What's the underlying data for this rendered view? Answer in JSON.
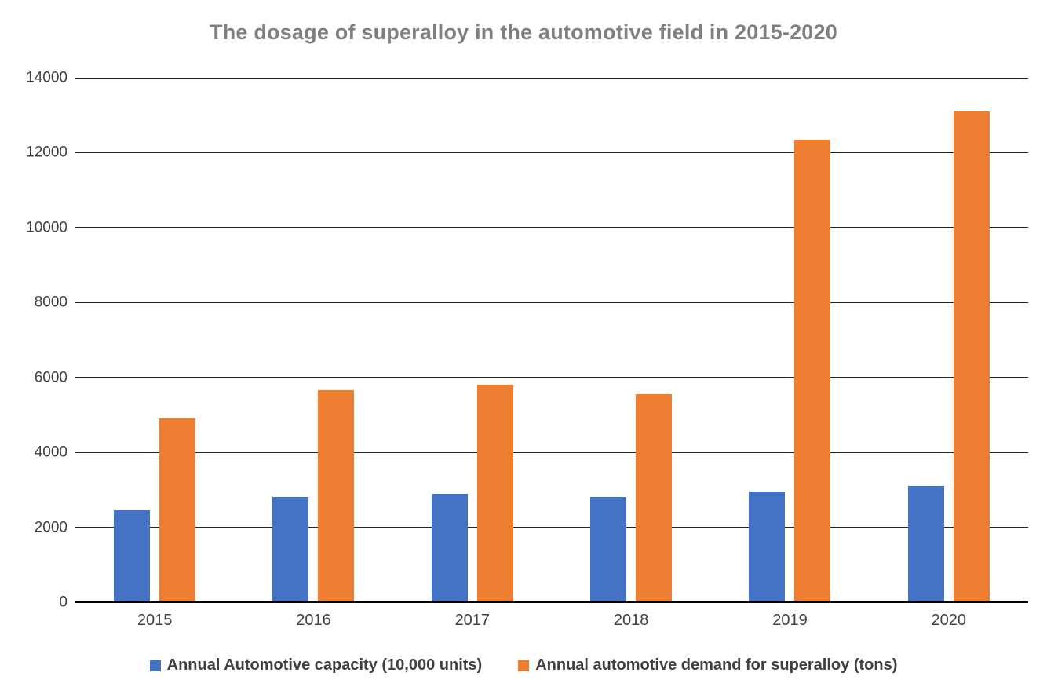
{
  "chart_data": {
    "type": "bar",
    "title": "The dosage of superalloy in the automotive field in 2015-2020",
    "categories": [
      "2015",
      "2016",
      "2017",
      "2018",
      "2019",
      "2020"
    ],
    "series": [
      {
        "name": "Annual Automotive capacity (10,000 units)",
        "color": "#4472C4",
        "values": [
          2450,
          2800,
          2900,
          2800,
          2950,
          3100
        ]
      },
      {
        "name": "Annual automotive demand for superalloy (tons)",
        "color": "#ED7D31",
        "values": [
          4900,
          5650,
          5800,
          5550,
          12350,
          13100
        ]
      }
    ],
    "xlabel": "",
    "ylabel": "",
    "ylim": [
      0,
      14000
    ],
    "ytick_step": 2000,
    "grid": true,
    "legend_position": "bottom",
    "colors": {
      "title": "#7f7f7f",
      "axis_text": "#404040",
      "gridline": "#262626",
      "axis_line": "#000000",
      "background": "#ffffff"
    }
  }
}
